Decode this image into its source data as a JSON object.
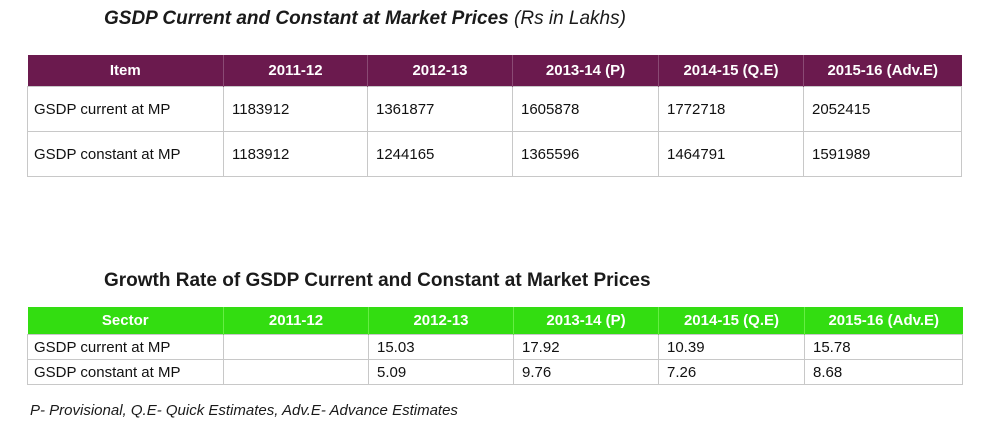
{
  "table1": {
    "title": "GSDP Current and Constant at Market Prices",
    "title_unit": "(Rs in Lakhs)",
    "header_color": "#6b1a4e",
    "headers": [
      "Item",
      "2011-12",
      "2012-13",
      "2013-14 (P)",
      "2014-15 (Q.E)",
      "2015-16 (Adv.E)"
    ],
    "rows": [
      [
        "GSDP  current at MP",
        "1183912",
        "1361877",
        "1605878",
        "1772718",
        "2052415"
      ],
      [
        "GSDP  constant at MP",
        "1183912",
        "1244165",
        "1365596",
        "1464791",
        "1591989"
      ]
    ]
  },
  "table2": {
    "title": "Growth Rate of GSDP Current and Constant at Market Prices",
    "header_color": "#33dd11",
    "headers": [
      "Sector",
      "2011-12",
      "2012-13",
      "2013-14 (P)",
      "2014-15 (Q.E)",
      "2015-16 (Adv.E)"
    ],
    "rows": [
      [
        "GSDP current at MP",
        "",
        "15.03",
        "17.92",
        "10.39",
        "15.78"
      ],
      [
        "GSDP constant at MP",
        "",
        "5.09",
        "9.76",
        "7.26",
        "8.68"
      ]
    ]
  },
  "footnote": "P- Provisional, Q.E- Quick Estimates, Adv.E- Advance Estimates"
}
